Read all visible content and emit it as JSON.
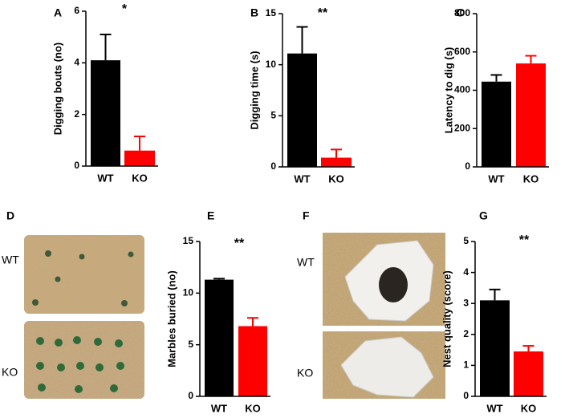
{
  "chart_data": [
    {
      "type": "bar",
      "panel": "A",
      "ylabel": "Digging bouts (no)",
      "annotation": "*",
      "categories": [
        "WT",
        "KO"
      ],
      "values": [
        4.1,
        0.6
      ],
      "errors": [
        1.0,
        0.55
      ],
      "colors": [
        "#000000",
        "#ff0000"
      ],
      "ylim": [
        0,
        6
      ],
      "yticks": [
        0,
        2,
        4,
        6
      ]
    },
    {
      "type": "bar",
      "panel": "B",
      "ylabel": "Digging time (s)",
      "annotation": "**",
      "categories": [
        "WT",
        "KO"
      ],
      "values": [
        11.1,
        0.9
      ],
      "errors": [
        2.6,
        0.8
      ],
      "colors": [
        "#000000",
        "#ff0000"
      ],
      "ylim": [
        0,
        15
      ],
      "yticks": [
        0,
        5,
        10,
        15
      ]
    },
    {
      "type": "bar",
      "panel": "C",
      "ylabel": "Latency to dig (s)",
      "categories": [
        "WT",
        "KO"
      ],
      "values": [
        445,
        540
      ],
      "errors": [
        35,
        40
      ],
      "colors": [
        "#000000",
        "#ff0000"
      ],
      "ylim": [
        0,
        800
      ],
      "yticks": [
        0,
        200,
        400,
        600,
        800
      ]
    },
    {
      "type": "bar",
      "panel": "E",
      "ylabel": "Marbles buried (no)",
      "annotation": "**",
      "categories": [
        "WT",
        "KO"
      ],
      "values": [
        11.3,
        6.8
      ],
      "errors": [
        0.1,
        0.8
      ],
      "colors": [
        "#000000",
        "#ff0000"
      ],
      "ylim": [
        0,
        15
      ],
      "yticks": [
        0,
        5,
        10,
        15
      ]
    },
    {
      "type": "bar",
      "panel": "G",
      "ylabel": "Nest quality (score)",
      "annotation": "**",
      "categories": [
        "WT",
        "KO"
      ],
      "values": [
        3.1,
        1.45
      ],
      "errors": [
        0.35,
        0.18
      ],
      "colors": [
        "#000000",
        "#ff0000"
      ],
      "ylim": [
        0,
        5
      ],
      "yticks": [
        0,
        1,
        2,
        3,
        4,
        5
      ]
    }
  ],
  "photos": [
    {
      "panel": "D",
      "labels": [
        "WT",
        "KO"
      ]
    },
    {
      "panel": "F",
      "labels": [
        "WT",
        "KO"
      ]
    }
  ]
}
